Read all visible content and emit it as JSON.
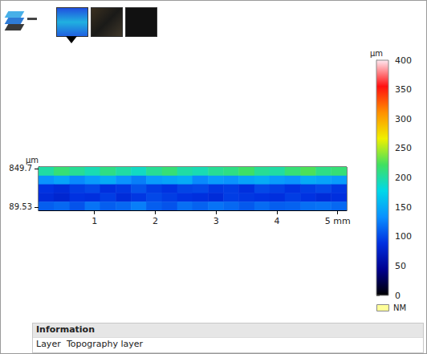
{
  "chart_data": {
    "type": "heatmap",
    "y_label": "µm",
    "xlim": [
      0.08,
      5.15
    ],
    "xticks": [
      1,
      2,
      3,
      4,
      {
        "value": 5,
        "label": "5 mm"
      }
    ],
    "ylim": [
      26,
      881
    ],
    "yticks": [
      89.53,
      849.7
    ],
    "x_edges": [
      0.08,
      0.33,
      0.59,
      0.84,
      1.09,
      1.35,
      1.6,
      1.85,
      2.11,
      2.36,
      2.61,
      2.87,
      3.12,
      3.37,
      3.63,
      3.88,
      4.13,
      4.39,
      4.64,
      4.89,
      5.15
    ],
    "y_edges": [
      881,
      710,
      539,
      368,
      197,
      26
    ],
    "z": [
      [
        200,
        215,
        205,
        195,
        210,
        200,
        190,
        205,
        215,
        200,
        195,
        205,
        210,
        220,
        205,
        200,
        215,
        225,
        210,
        215
      ],
      [
        135,
        145,
        130,
        140,
        150,
        135,
        125,
        140,
        145,
        150,
        130,
        140,
        135,
        145,
        150,
        140,
        135,
        150,
        145,
        140
      ],
      [
        90,
        85,
        95,
        100,
        88,
        92,
        105,
        95,
        90,
        98,
        100,
        92,
        95,
        88,
        100,
        96,
        90,
        95,
        100,
        92
      ],
      [
        85,
        80,
        90,
        88,
        95,
        85,
        92,
        100,
        95,
        90,
        88,
        85,
        95,
        92,
        90,
        88,
        95,
        90,
        85,
        88
      ],
      [
        110,
        115,
        105,
        120,
        110,
        115,
        125,
        110,
        105,
        118,
        112,
        120,
        115,
        108,
        116,
        110,
        112,
        118,
        120,
        115
      ]
    ],
    "colorbar": {
      "label": "µm",
      "lim": [
        0,
        400
      ],
      "ticks": [
        0,
        50,
        100,
        150,
        200,
        250,
        300,
        350,
        400
      ]
    },
    "nm_label": "NM"
  },
  "information": {
    "title": "Information",
    "rows": [
      [
        "Layer",
        "Topography layer"
      ]
    ]
  }
}
